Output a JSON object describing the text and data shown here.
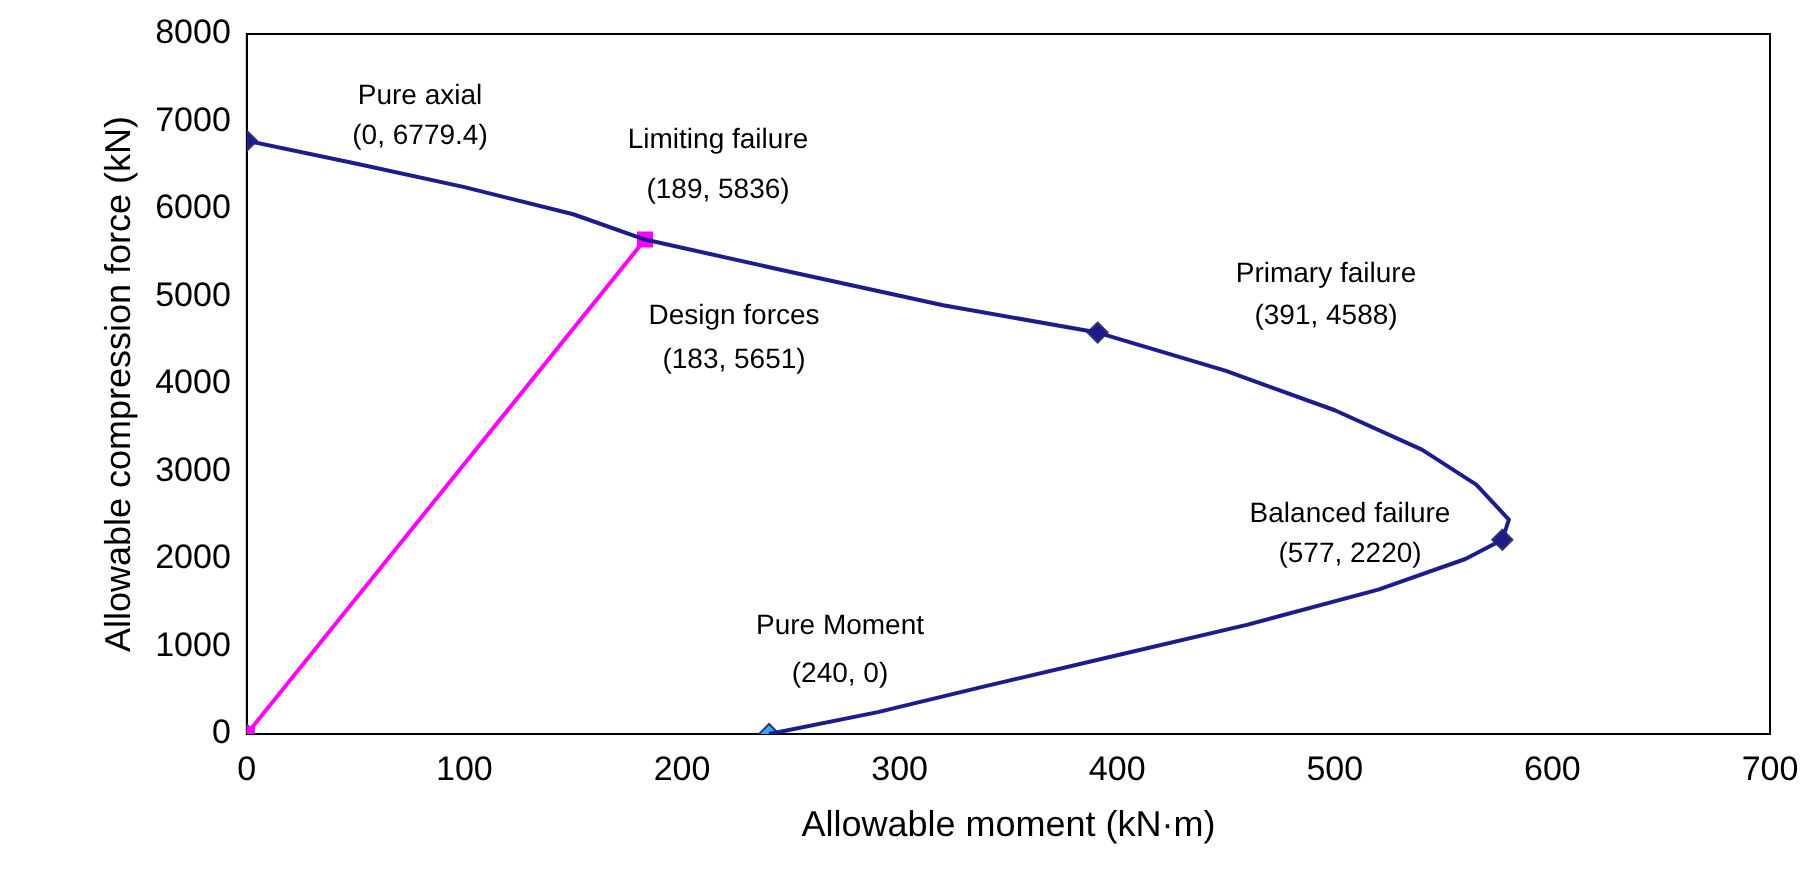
{
  "chart_data": {
    "type": "line",
    "xlabel": "Allowable moment (kN·m)",
    "ylabel": "Allowable compression force (kN)",
    "xlim": [
      0,
      700
    ],
    "xticks": [
      0,
      100,
      200,
      300,
      400,
      500,
      600,
      700
    ],
    "ylim": [
      0,
      8000
    ],
    "yticks": [
      0,
      1000,
      2000,
      3000,
      4000,
      5000,
      6000,
      7000,
      8000
    ],
    "grid": false,
    "legend": false,
    "series": [
      {
        "type": "line",
        "color": "#1c1c8c",
        "marker": "none",
        "x": [
          0,
          50,
          100,
          150,
          183,
          250,
          320,
          391,
          450,
          500,
          540,
          565,
          580,
          577,
          560,
          520,
          460,
          400,
          340,
          290,
          240
        ],
        "values": [
          6779.4,
          6520,
          6250,
          5940,
          5651,
          5280,
          4900,
          4588,
          4150,
          3700,
          3250,
          2850,
          2450,
          2220,
          2000,
          1650,
          1250,
          900,
          550,
          250,
          0
        ]
      },
      {
        "type": "scatter",
        "color": "#1c1c8c",
        "marker": "diamond",
        "x": [
          0,
          391,
          577
        ],
        "values": [
          6779.4,
          4588,
          2220
        ]
      },
      {
        "type": "scatter",
        "color": "#33aaff",
        "marker": "diamond",
        "x": [
          240
        ],
        "values": [
          0
        ]
      },
      {
        "type": "line",
        "color": "#ff00ff",
        "marker": "square",
        "x": [
          0,
          183
        ],
        "values": [
          0,
          5651
        ]
      },
      {
        "type": "scatter",
        "color": "#ffff00",
        "marker": "triangle",
        "x": [
          0
        ],
        "values": [
          0
        ]
      }
    ],
    "annotations": [
      "Pure axial",
      "(0, 6779.4)",
      "Limiting failure",
      "(189, 5836)",
      "Design forces",
      "(183, 5651)",
      "Primary failure",
      "(391, 4588)",
      "Balanced failure",
      "(577, 2220)",
      "Pure Moment",
      "(240, 0)"
    ]
  }
}
